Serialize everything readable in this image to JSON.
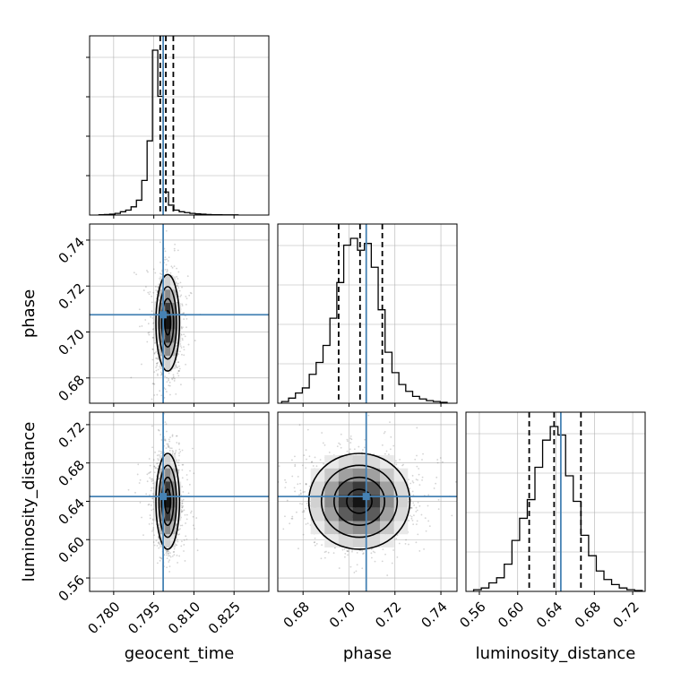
{
  "chart_data": {
    "type": "corner",
    "parameters": [
      {
        "name": "geocent_time",
        "label": "geocent_time",
        "range": [
          0.771,
          0.838
        ],
        "ticks": [
          "0.780",
          "0.795",
          "0.810",
          "0.825"
        ],
        "truth": 0.7985,
        "quantiles": [
          0.7974,
          0.7995,
          0.8023
        ]
      },
      {
        "name": "phase",
        "label": "phase",
        "range": [
          0.669,
          0.747
        ],
        "ticks": [
          "0.68",
          "0.70",
          "0.72",
          "0.74"
        ],
        "truth": 0.7075,
        "quantiles": [
          0.6955,
          0.7048,
          0.7145
        ]
      },
      {
        "name": "luminosity_distance",
        "label": "luminosity_distance",
        "range": [
          0.546,
          0.733
        ],
        "ticks": [
          "0.56",
          "0.60",
          "0.64",
          "0.68",
          "0.72"
        ],
        "truth": 0.645,
        "quantiles": [
          0.612,
          0.638,
          0.666
        ]
      }
    ],
    "histograms": [
      {
        "param": "geocent_time",
        "bin_edges": [
          0.7745,
          0.7765,
          0.7785,
          0.7805,
          0.7825,
          0.7845,
          0.7865,
          0.7885,
          0.7905,
          0.7925,
          0.7945,
          0.7965,
          0.7985,
          0.8005,
          0.8025,
          0.8045,
          0.8065,
          0.8085,
          0.8105,
          0.8125,
          0.8145,
          0.8165,
          0.8185,
          0.8205,
          0.8225,
          0.8245,
          0.8265
        ],
        "counts": [
          0.002,
          0.003,
          0.005,
          0.01,
          0.02,
          0.03,
          0.05,
          0.09,
          0.21,
          0.45,
          1.0,
          0.72,
          0.14,
          0.06,
          0.03,
          0.02,
          0.015,
          0.01,
          0.007,
          0.005,
          0.003,
          0.002,
          0.002,
          0.001,
          0.001,
          0.001
        ]
      },
      {
        "param": "phase",
        "bin_edges": [
          0.6707,
          0.6737,
          0.6767,
          0.6797,
          0.6827,
          0.6857,
          0.6887,
          0.6917,
          0.6947,
          0.6977,
          0.7007,
          0.7037,
          0.7067,
          0.7097,
          0.7127,
          0.7157,
          0.7187,
          0.7217,
          0.7247,
          0.7277,
          0.7307,
          0.7337,
          0.7367,
          0.7397,
          0.7427
        ],
        "counts": [
          0.01,
          0.03,
          0.06,
          0.09,
          0.17,
          0.24,
          0.34,
          0.5,
          0.71,
          0.93,
          0.97,
          0.9,
          0.94,
          0.8,
          0.55,
          0.3,
          0.18,
          0.11,
          0.07,
          0.04,
          0.025,
          0.015,
          0.01,
          0.005
        ]
      },
      {
        "param": "luminosity_distance",
        "bin_edges": [
          0.554,
          0.562,
          0.57,
          0.578,
          0.586,
          0.594,
          0.602,
          0.61,
          0.618,
          0.626,
          0.634,
          0.642,
          0.65,
          0.658,
          0.666,
          0.674,
          0.682,
          0.69,
          0.698,
          0.706,
          0.714,
          0.722,
          0.73
        ],
        "counts": [
          0.01,
          0.02,
          0.05,
          0.08,
          0.16,
          0.3,
          0.43,
          0.54,
          0.73,
          0.89,
          0.97,
          0.92,
          0.68,
          0.53,
          0.33,
          0.21,
          0.12,
          0.07,
          0.04,
          0.02,
          0.01,
          0.005
        ]
      }
    ],
    "joint": [
      {
        "x": "geocent_time",
        "y": "phase",
        "mean": [
          0.8002,
          0.704
        ],
        "sd": [
          0.0022,
          0.0105
        ],
        "corr": 0.0
      },
      {
        "x": "geocent_time",
        "y": "luminosity_distance",
        "mean": [
          0.8002,
          0.64
        ],
        "sd": [
          0.0022,
          0.025
        ],
        "corr": 0.0
      },
      {
        "x": "phase",
        "y": "luminosity_distance",
        "mean": [
          0.7045,
          0.64
        ],
        "sd": [
          0.011,
          0.025
        ],
        "corr": 0.0
      }
    ],
    "contour_levels_sigma": [
      0.5,
      1.0,
      1.5,
      2.0
    ],
    "grid": true,
    "colors": {
      "truth": "#4682b4",
      "hist": "#000000",
      "contour": "#000000",
      "grid": "#b0b0b0",
      "points": "#555555"
    }
  }
}
